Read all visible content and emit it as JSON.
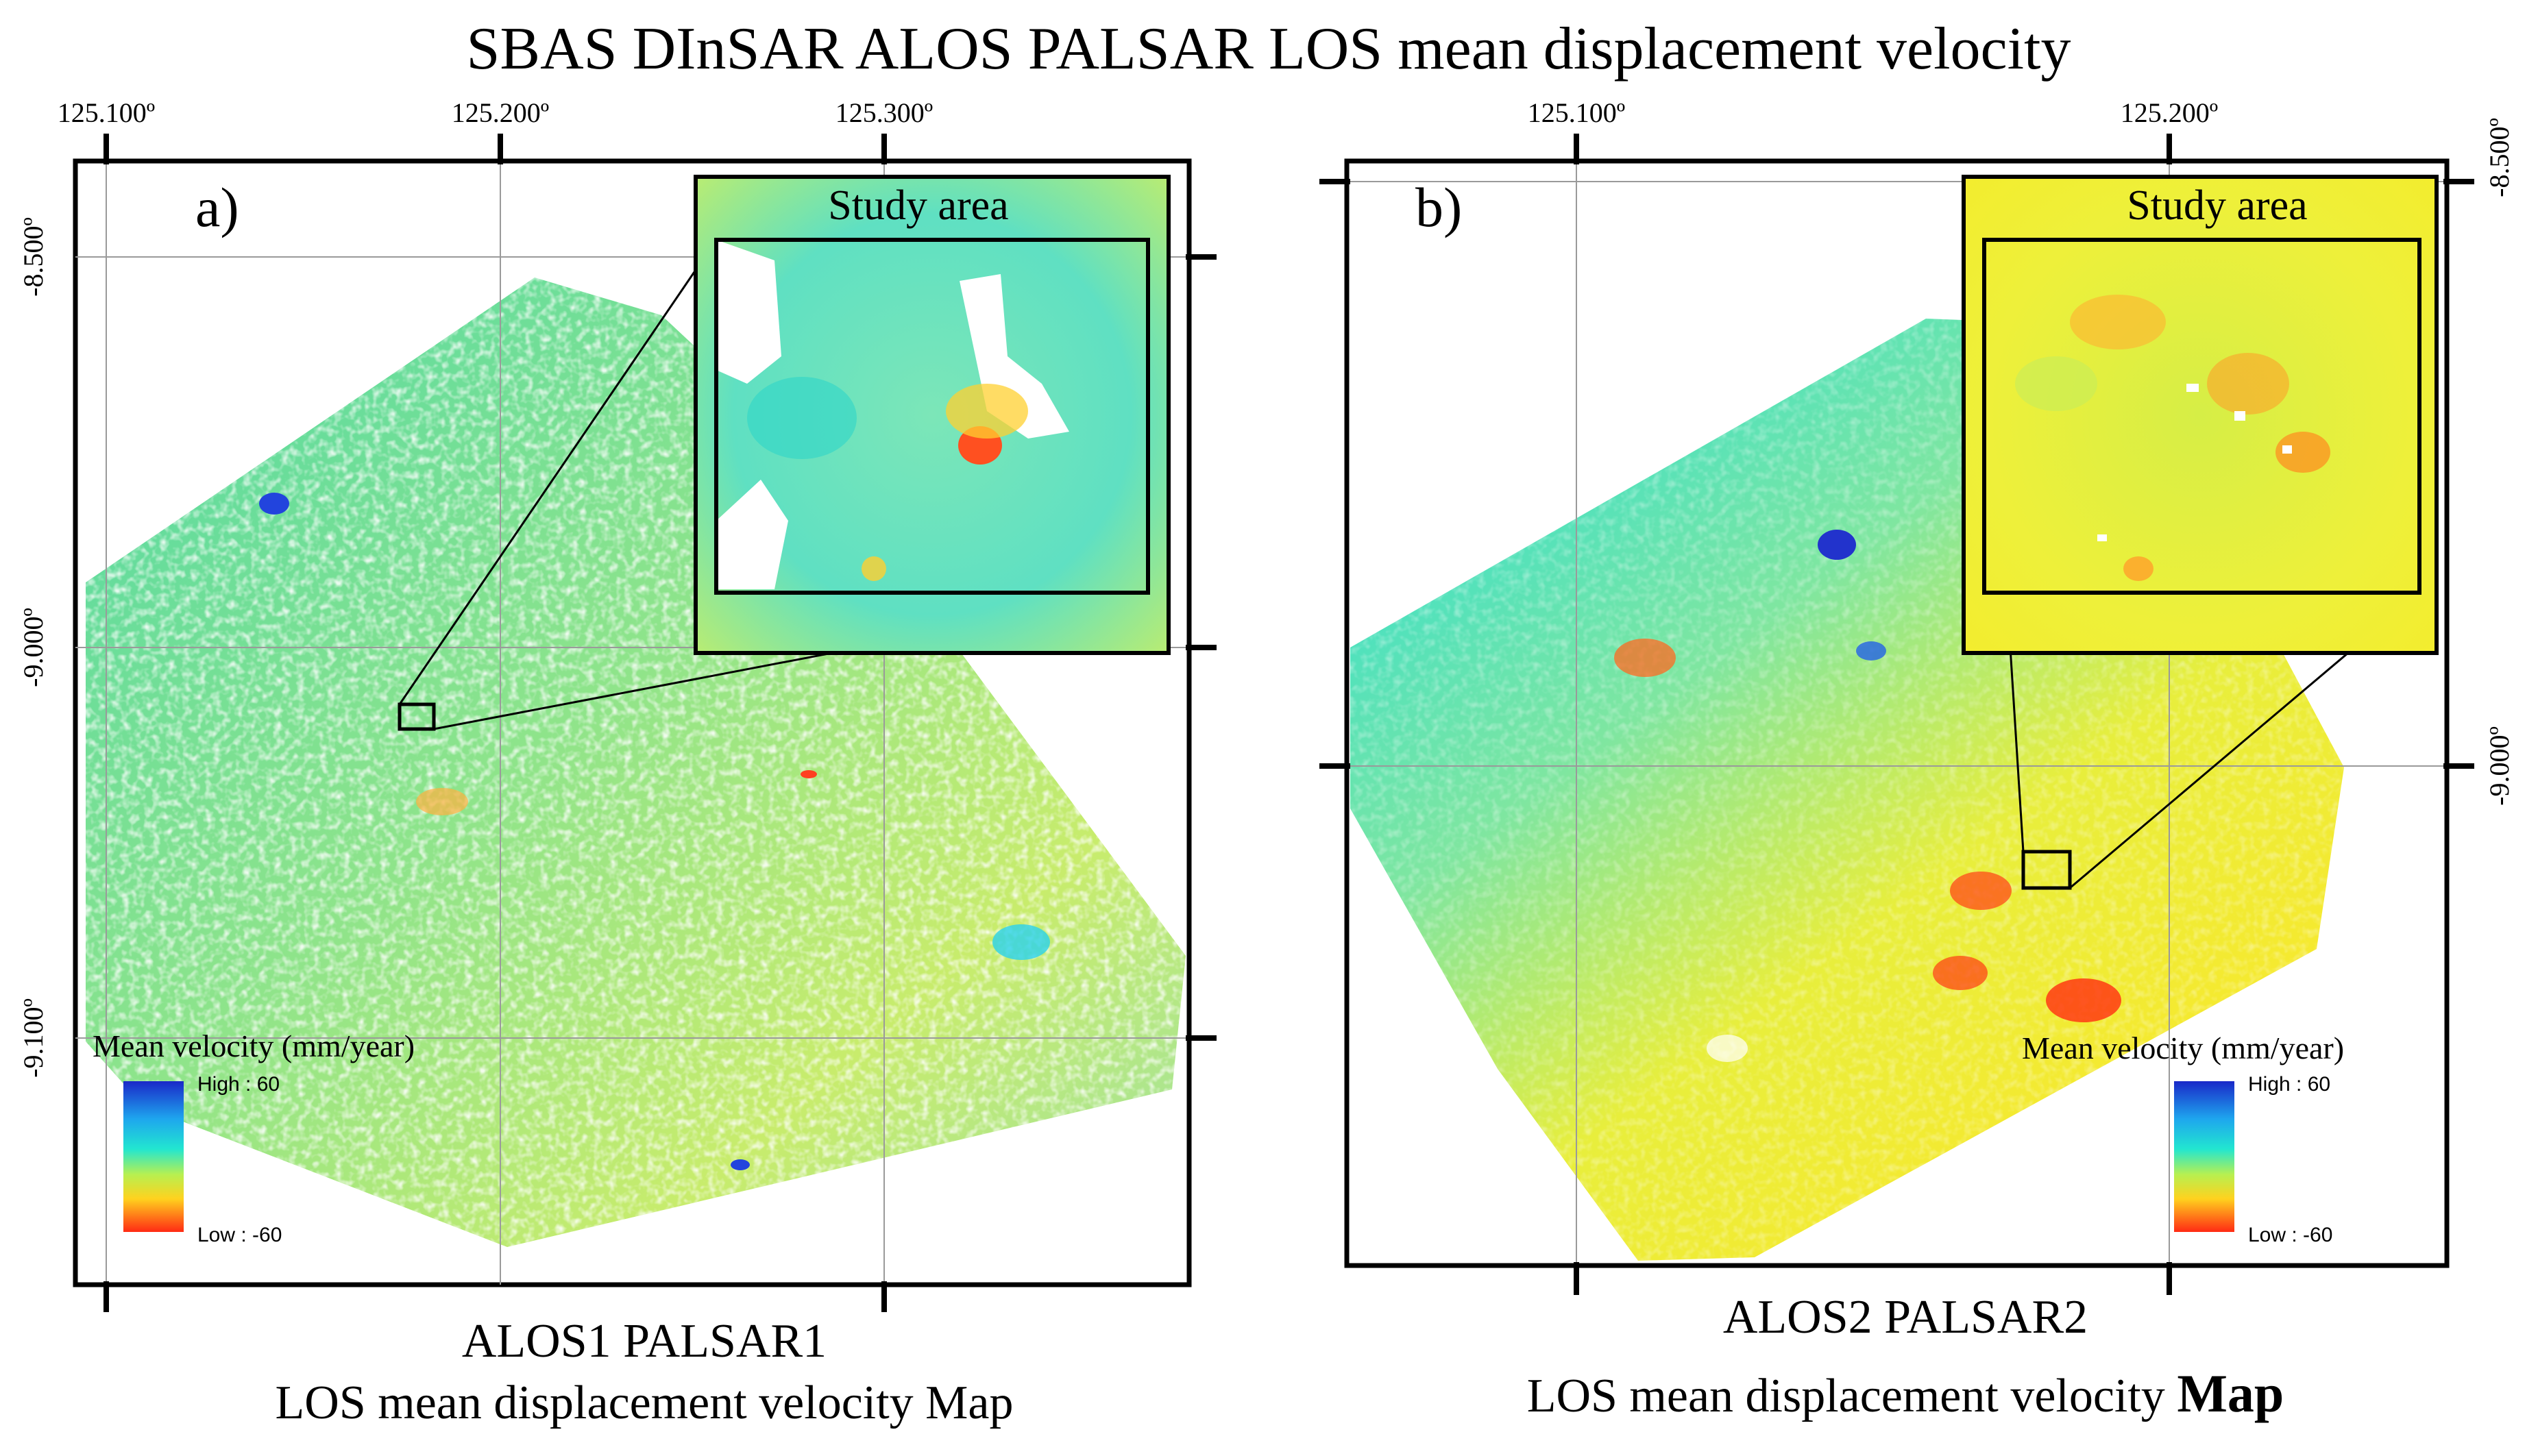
{
  "title": "SBAS DInSAR ALOS PALSAR LOS mean displacement velocity",
  "panels": [
    {
      "label": "a)",
      "inset_title": "Study area",
      "caption_line1": "ALOS1 PALSAR1",
      "caption_line2": "LOS mean displacement velocity Map",
      "lon_ticks": [
        "125.100º",
        "125.200º",
        "125.300º"
      ],
      "lat_ticks": [
        "-8.500º",
        "-9.000º",
        "-9.100º"
      ],
      "legend": {
        "title": "Mean velocity (mm/year)",
        "high": "High : 60",
        "low": "Low : -60"
      }
    },
    {
      "label": "b)",
      "inset_title": "Study area",
      "caption_line1": "ALOS2 PALSAR2",
      "caption_line2": "LOS mean displacement velocity",
      "caption_line2_bold": "Map",
      "lon_ticks": [
        "125.100º",
        "125.200º"
      ],
      "lat_ticks": [
        "-8.500º",
        "-9.000º"
      ],
      "legend": {
        "title": "Mean velocity (mm/year)",
        "high": "High : 60",
        "low": "Low : -60"
      }
    }
  ],
  "colors": {
    "high": "#1a28c8",
    "mid_high": "#22e6e6",
    "mid": "#e6f046",
    "mid_low": "#ffa81e",
    "low": "#ff2a14"
  }
}
